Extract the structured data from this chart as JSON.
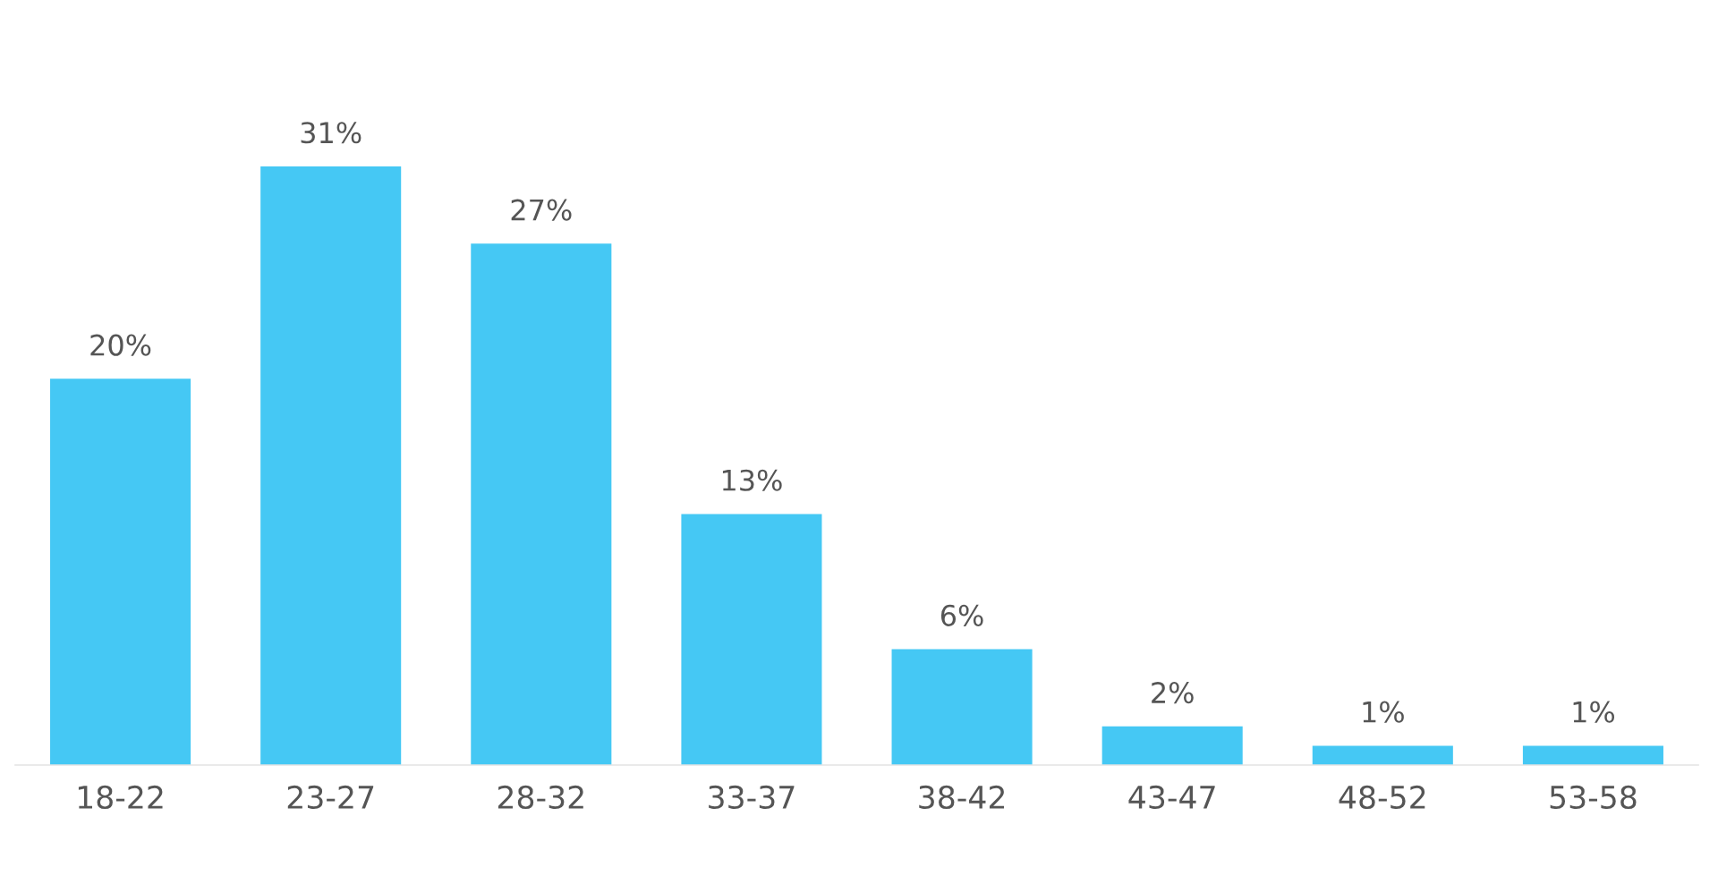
{
  "chart_data": {
    "type": "bar",
    "categories": [
      "18-22",
      "23-27",
      "28-32",
      "33-37",
      "38-42",
      "43-47",
      "48-52",
      "53-58"
    ],
    "values": [
      20,
      31,
      27,
      13,
      6,
      2,
      1,
      1
    ],
    "value_labels": [
      "20%",
      "31%",
      "27%",
      "13%",
      "6%",
      "2%",
      "1%",
      "1%"
    ],
    "color": "#45c8f4",
    "tick_labels": "x"
  }
}
